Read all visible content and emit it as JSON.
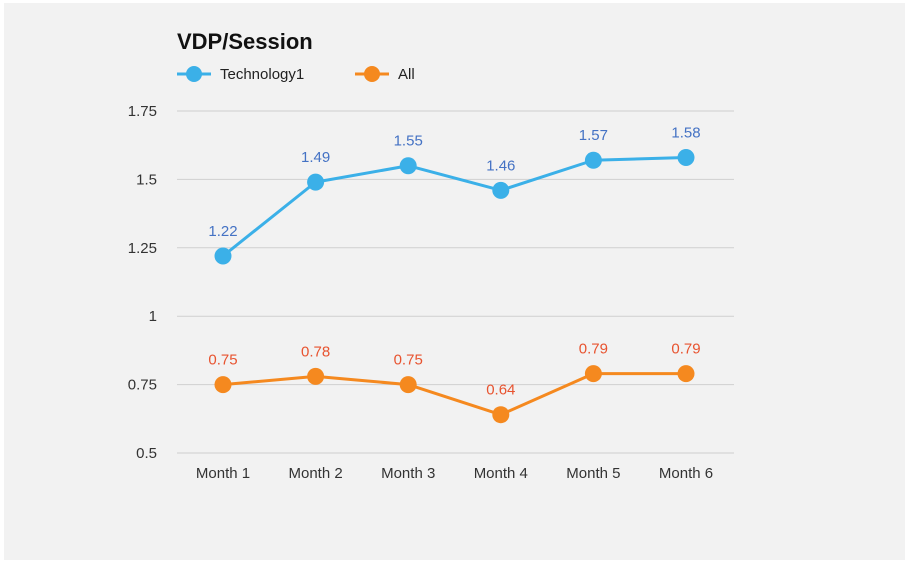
{
  "chart_data": {
    "type": "line",
    "title": "VDP/Session",
    "categories": [
      "Month 1",
      "Month 2",
      "Month 3",
      "Month 4",
      "Month 5",
      "Month 6"
    ],
    "series": [
      {
        "name": "Technology1",
        "values": [
          1.22,
          1.49,
          1.55,
          1.46,
          1.57,
          1.58
        ],
        "color": "#3bb0e8",
        "label_color": "#4472c4"
      },
      {
        "name": "All",
        "values": [
          0.75,
          0.78,
          0.75,
          0.64,
          0.79,
          0.79
        ],
        "color": "#f5891f",
        "label_color": "#e8532f"
      }
    ],
    "yticks": [
      "1.75",
      "1.5",
      "1.25",
      "1",
      "0.75",
      "0.5"
    ],
    "ylim": [
      0.5,
      1.75
    ],
    "grid": true,
    "legend": "top-left",
    "data_labels": true
  }
}
